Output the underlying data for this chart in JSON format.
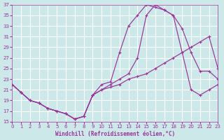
{
  "xlabel": "Windchill (Refroidissement éolien,°C)",
  "bg_color": "#cce8e8",
  "line_color": "#993399",
  "grid_color": "#ffffff",
  "xlim": [
    0,
    23
  ],
  "ylim": [
    15,
    37
  ],
  "xticks": [
    0,
    1,
    2,
    3,
    4,
    5,
    6,
    7,
    8,
    9,
    10,
    11,
    12,
    13,
    14,
    15,
    16,
    17,
    18,
    19,
    20,
    21,
    22,
    23
  ],
  "yticks": [
    15,
    17,
    19,
    21,
    23,
    25,
    27,
    29,
    31,
    33,
    35,
    37
  ],
  "line1_x": [
    0,
    1,
    2,
    3,
    4,
    5,
    6,
    7,
    8,
    9,
    10,
    11,
    12,
    13,
    14,
    15,
    16,
    17,
    18,
    19,
    20,
    21,
    22,
    23
  ],
  "line1_y": [
    22,
    20.5,
    19,
    18.5,
    17.5,
    17,
    16.5,
    15.5,
    16,
    20,
    21,
    21.5,
    22,
    23,
    23.5,
    24,
    25,
    26,
    27,
    28,
    29,
    30,
    31,
    25
  ],
  "line2_x": [
    0,
    1,
    2,
    3,
    4,
    5,
    6,
    7,
    8,
    9,
    10,
    11,
    12,
    13,
    14,
    15,
    16,
    17,
    18,
    19,
    20,
    21,
    22,
    23
  ],
  "line2_y": [
    22,
    20.5,
    19,
    18.5,
    17.5,
    17,
    16.5,
    15.5,
    16,
    20,
    21,
    22,
    23,
    24,
    27,
    35,
    37,
    36,
    35,
    28,
    21,
    20,
    21,
    22
  ],
  "line3_x": [
    0,
    1,
    2,
    3,
    4,
    5,
    6,
    7,
    8,
    9,
    10,
    11,
    12,
    13,
    14,
    15,
    16,
    17,
    18,
    19,
    20,
    21,
    22,
    23
  ],
  "line3_y": [
    22,
    20.5,
    19,
    18.5,
    17.5,
    17,
    16.5,
    15.5,
    16,
    20,
    22,
    22.5,
    28,
    33,
    35,
    37,
    36.5,
    36,
    35,
    32.5,
    28,
    24.5,
    24.5,
    23
  ]
}
